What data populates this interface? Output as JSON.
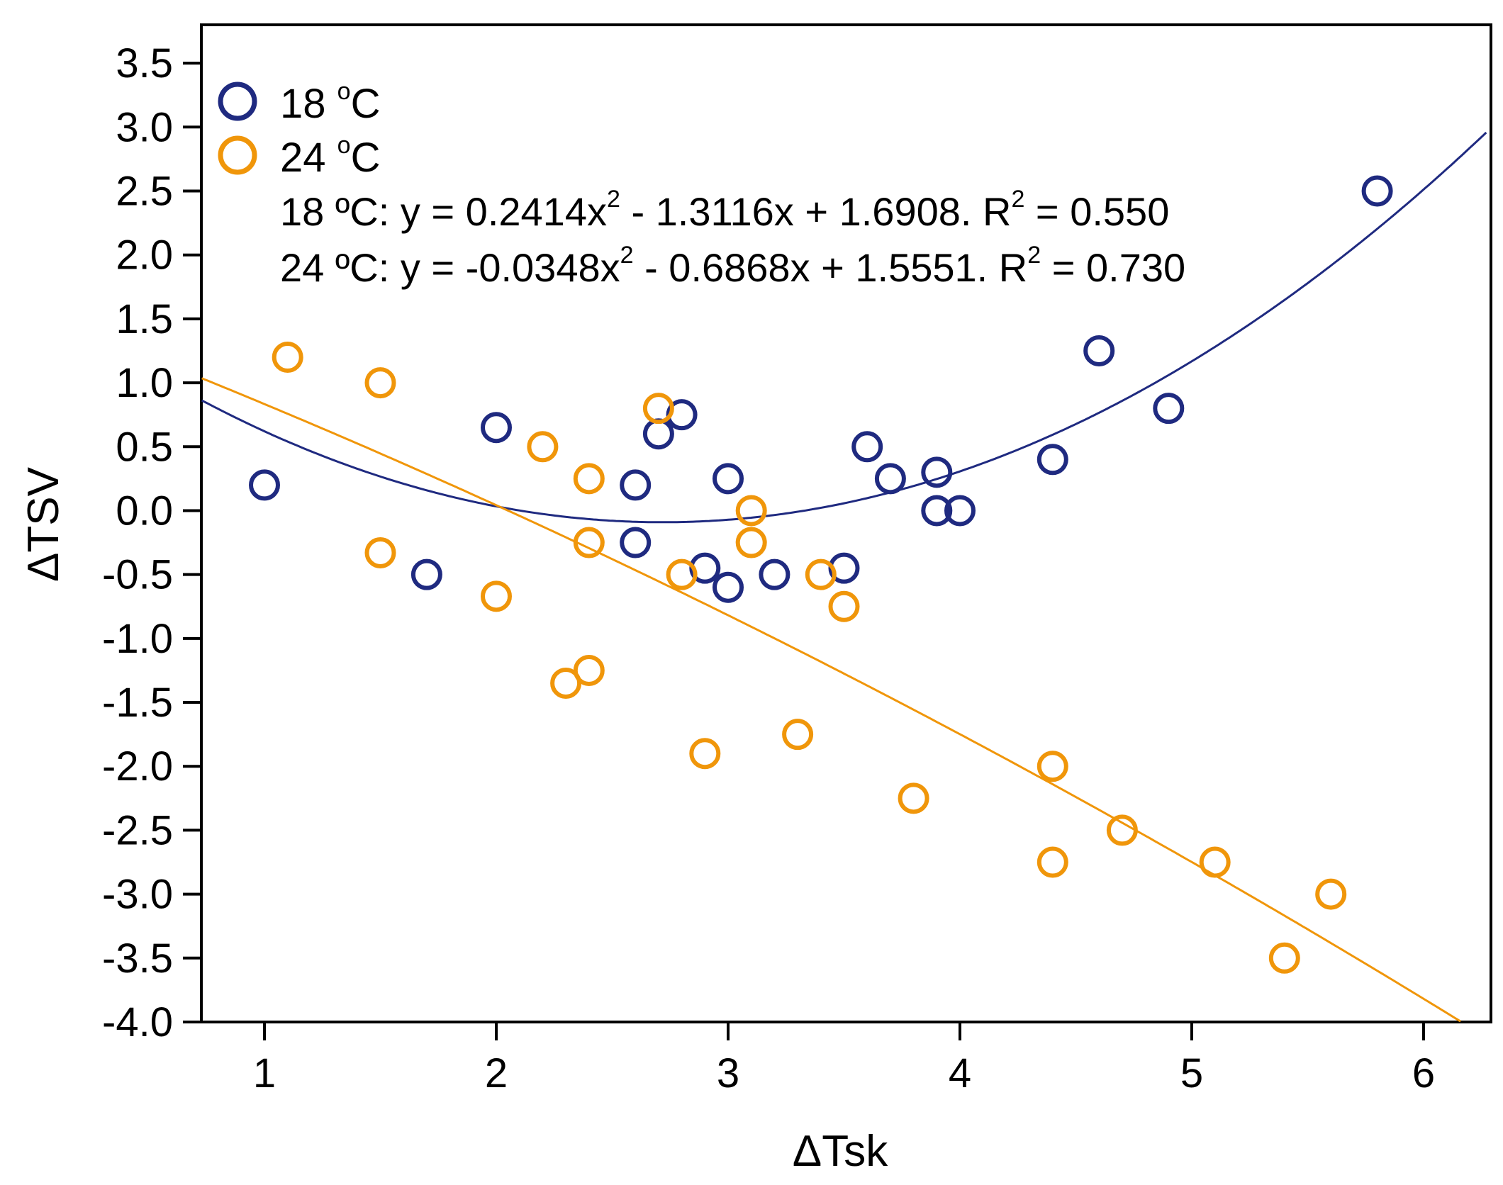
{
  "chart_data": {
    "type": "scatter",
    "title": "",
    "xlabel": "ΔTsk",
    "ylabel": "ΔTSV",
    "xlim": [
      0.73,
      6.27
    ],
    "ylim": [
      -4.0,
      3.8
    ],
    "x_ticks": [
      1,
      2,
      3,
      4,
      5,
      6
    ],
    "y_ticks": [
      -4.0,
      -3.5,
      -3.0,
      -2.5,
      -2.0,
      -1.5,
      -1.0,
      -0.5,
      0.0,
      0.5,
      1.0,
      1.5,
      2.0,
      2.5,
      3.0,
      3.5
    ],
    "x_tick_labels": [
      "1",
      "2",
      "3",
      "4",
      "5",
      "6"
    ],
    "y_tick_labels": [
      "-4.0",
      "-3.5",
      "-3.0",
      "-2.5",
      "-2.0",
      "-1.5",
      "-1.0",
      "-0.5",
      "0.0",
      "0.5",
      "1.0",
      "1.5",
      "2.0",
      "2.5",
      "3.0",
      "3.5"
    ],
    "grid": false,
    "legend_position": "top-left",
    "series": [
      {
        "name": "18 °C",
        "color": "#1f2a80",
        "points": [
          [
            1.0,
            0.2
          ],
          [
            1.7,
            -0.5
          ],
          [
            2.0,
            0.65
          ],
          [
            2.6,
            0.2
          ],
          [
            2.6,
            -0.25
          ],
          [
            2.7,
            0.6
          ],
          [
            2.8,
            0.75
          ],
          [
            2.9,
            -0.45
          ],
          [
            3.0,
            0.25
          ],
          [
            3.0,
            -0.6
          ],
          [
            3.2,
            -0.5
          ],
          [
            3.5,
            -0.45
          ],
          [
            3.6,
            0.5
          ],
          [
            3.7,
            0.25
          ],
          [
            3.9,
            0.3
          ],
          [
            3.9,
            0.0
          ],
          [
            4.0,
            0.0
          ],
          [
            4.4,
            0.4
          ],
          [
            4.6,
            1.25
          ],
          [
            4.9,
            0.8
          ],
          [
            5.8,
            2.5
          ]
        ],
        "fit": {
          "a": 0.2414,
          "b": -1.3116,
          "c": 1.6908,
          "r2": 0.55
        }
      },
      {
        "name": "24 °C",
        "color": "#f0960a",
        "points": [
          [
            1.1,
            1.2
          ],
          [
            1.5,
            1.0
          ],
          [
            1.5,
            -0.33
          ],
          [
            2.0,
            -0.67
          ],
          [
            2.2,
            0.5
          ],
          [
            2.3,
            -1.35
          ],
          [
            2.4,
            0.25
          ],
          [
            2.4,
            -0.25
          ],
          [
            2.4,
            -1.25
          ],
          [
            2.7,
            0.8
          ],
          [
            2.8,
            -0.5
          ],
          [
            2.9,
            -1.9
          ],
          [
            3.1,
            0.0
          ],
          [
            3.1,
            -0.25
          ],
          [
            3.3,
            -1.75
          ],
          [
            3.4,
            -0.5
          ],
          [
            3.5,
            -0.75
          ],
          [
            3.8,
            -2.25
          ],
          [
            4.4,
            -2.0
          ],
          [
            4.4,
            -2.75
          ],
          [
            4.7,
            -2.5
          ],
          [
            5.1,
            -2.75
          ],
          [
            5.4,
            -3.5
          ],
          [
            5.6,
            -3.0
          ]
        ],
        "fit": {
          "a": -0.0348,
          "b": -0.6868,
          "c": 1.5551,
          "r2": 0.73
        }
      }
    ],
    "annotations": {
      "eq1_label": "18 ºC: y = 0.2414x",
      "eq1_mid": " - 1.3116x + 1.6908. R",
      "eq1_end": " = 0.550",
      "eq2_label": "24 ºC: y = -0.0348x",
      "eq2_mid": " - 0.6868x + 1.5551. R",
      "eq2_end": " = 0.730",
      "sup": "2"
    },
    "legend": {
      "item1_num": "18 ",
      "item1_deg": "o",
      "item1_unit": "C",
      "item2_num": "24 ",
      "item2_deg": "o",
      "item2_unit": "C"
    }
  }
}
